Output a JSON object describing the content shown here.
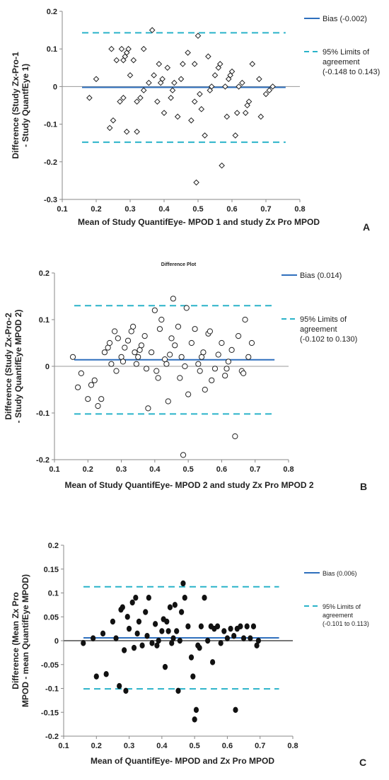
{
  "chart_data": [
    {
      "panel_label": "A",
      "type": "scatter",
      "title": "",
      "xlabel": "Mean of Study QuantifEye- MPOD 1 and study Zx Pro MPOD",
      "ylabel": "Difference (Study Zx-Pro-1 - Study QuantfEye 1)",
      "xlim": [
        0.1,
        0.8
      ],
      "ylim": [
        -0.3,
        0.2
      ],
      "x_ticks": [
        "0.1",
        "0.2",
        "0.3",
        "0.4",
        "0.5",
        "0.6",
        "0.7",
        "0.8"
      ],
      "y_ticks": [
        "0.2",
        "0.1",
        "0",
        "-0.1",
        "-0.2",
        "-0.3"
      ],
      "marker": "diamond-open",
      "bias": -0.002,
      "loa": [
        -0.148,
        0.143
      ],
      "legend": {
        "bias_label": "Bias (-0.002)",
        "loa_label_1": "95% Limits of",
        "loa_label_2": "agreement",
        "loa_label_3": "(-0.148 to 0.143)"
      },
      "colors": {
        "bias": "#2e6fbd",
        "loa": "#2ab3c9",
        "zero": "#999999",
        "marker": "#222222"
      },
      "points": [
        [
          0.18,
          -0.03
        ],
        [
          0.2,
          0.02
        ],
        [
          0.24,
          -0.11
        ],
        [
          0.245,
          0.1
        ],
        [
          0.25,
          -0.09
        ],
        [
          0.26,
          0.07
        ],
        [
          0.27,
          -0.04
        ],
        [
          0.275,
          0.1
        ],
        [
          0.28,
          -0.03
        ],
        [
          0.28,
          0.07
        ],
        [
          0.285,
          0.08
        ],
        [
          0.29,
          0.09
        ],
        [
          0.29,
          -0.12
        ],
        [
          0.295,
          0.1
        ],
        [
          0.3,
          0.03
        ],
        [
          0.31,
          0.07
        ],
        [
          0.32,
          -0.12
        ],
        [
          0.32,
          -0.04
        ],
        [
          0.33,
          -0.03
        ],
        [
          0.34,
          -0.01
        ],
        [
          0.34,
          0.1
        ],
        [
          0.355,
          0.01
        ],
        [
          0.365,
          0.15
        ],
        [
          0.37,
          0.03
        ],
        [
          0.38,
          -0.04
        ],
        [
          0.385,
          0.06
        ],
        [
          0.39,
          0.01
        ],
        [
          0.395,
          0.02
        ],
        [
          0.4,
          -0.07
        ],
        [
          0.41,
          0.05
        ],
        [
          0.42,
          -0.03
        ],
        [
          0.425,
          -0.01
        ],
        [
          0.43,
          0.01
        ],
        [
          0.44,
          -0.08
        ],
        [
          0.45,
          0.02
        ],
        [
          0.455,
          0.06
        ],
        [
          0.47,
          0.09
        ],
        [
          0.48,
          -0.09
        ],
        [
          0.49,
          -0.04
        ],
        [
          0.49,
          0.06
        ],
        [
          0.495,
          -0.255
        ],
        [
          0.5,
          0.135
        ],
        [
          0.505,
          -0.02
        ],
        [
          0.51,
          -0.06
        ],
        [
          0.52,
          -0.13
        ],
        [
          0.53,
          0.08
        ],
        [
          0.535,
          -0.01
        ],
        [
          0.54,
          0.0
        ],
        [
          0.55,
          0.03
        ],
        [
          0.56,
          0.05
        ],
        [
          0.565,
          0.06
        ],
        [
          0.57,
          -0.21
        ],
        [
          0.58,
          0.0
        ],
        [
          0.585,
          -0.08
        ],
        [
          0.59,
          0.02
        ],
        [
          0.595,
          0.03
        ],
        [
          0.6,
          0.04
        ],
        [
          0.61,
          -0.13
        ],
        [
          0.615,
          -0.07
        ],
        [
          0.62,
          0.0
        ],
        [
          0.63,
          0.01
        ],
        [
          0.64,
          -0.07
        ],
        [
          0.645,
          -0.05
        ],
        [
          0.65,
          -0.04
        ],
        [
          0.66,
          0.06
        ],
        [
          0.68,
          0.02
        ],
        [
          0.685,
          -0.08
        ],
        [
          0.7,
          -0.02
        ],
        [
          0.71,
          -0.01
        ],
        [
          0.72,
          0.0
        ]
      ]
    },
    {
      "panel_label": "B",
      "type": "scatter",
      "title": "Difference Plot",
      "xlabel": "Mean of Study QuantifEye- MPOD 2 and study Zx Pro MPOD 2",
      "ylabel": "Difference (Study Zx-Pro-2 - Study QuantifEye MPOD 2)",
      "xlim": [
        0.1,
        0.8
      ],
      "ylim": [
        -0.2,
        0.2
      ],
      "x_ticks": [
        "0.1",
        "0.2",
        "0.3",
        "0.4",
        "0.5",
        "0.6",
        "0.7",
        "0.8"
      ],
      "y_ticks": [
        "0.2",
        "0.1",
        "0",
        "-0.1",
        "-0.2"
      ],
      "marker": "circle-open",
      "bias": 0.014,
      "loa": [
        -0.102,
        0.13
      ],
      "legend": {
        "bias_label": "Bias (0.014)",
        "loa_label_1": "95% Limits of",
        "loa_label_2": "agreement",
        "loa_label_3": "(-0.102 to 0.130)"
      },
      "colors": {
        "bias": "#2e6fbd",
        "loa": "#2ab3c9",
        "zero": "#999999",
        "marker": "#222222"
      },
      "points": [
        [
          0.155,
          0.02
        ],
        [
          0.17,
          -0.045
        ],
        [
          0.18,
          -0.015
        ],
        [
          0.2,
          -0.07
        ],
        [
          0.21,
          -0.04
        ],
        [
          0.22,
          -0.03
        ],
        [
          0.23,
          -0.085
        ],
        [
          0.24,
          -0.07
        ],
        [
          0.25,
          0.03
        ],
        [
          0.26,
          0.04
        ],
        [
          0.265,
          0.05
        ],
        [
          0.27,
          0.005
        ],
        [
          0.28,
          0.075
        ],
        [
          0.285,
          -0.01
        ],
        [
          0.29,
          0.06
        ],
        [
          0.3,
          0.02
        ],
        [
          0.305,
          0.01
        ],
        [
          0.31,
          0.04
        ],
        [
          0.32,
          0.055
        ],
        [
          0.33,
          0.075
        ],
        [
          0.335,
          0.085
        ],
        [
          0.34,
          0.03
        ],
        [
          0.345,
          0.005
        ],
        [
          0.35,
          0.02
        ],
        [
          0.355,
          0.035
        ],
        [
          0.36,
          0.045
        ],
        [
          0.37,
          0.065
        ],
        [
          0.375,
          -0.005
        ],
        [
          0.38,
          -0.09
        ],
        [
          0.39,
          0.03
        ],
        [
          0.4,
          0.12
        ],
        [
          0.405,
          -0.01
        ],
        [
          0.41,
          -0.025
        ],
        [
          0.415,
          0.08
        ],
        [
          0.42,
          0.1
        ],
        [
          0.43,
          0.015
        ],
        [
          0.435,
          0.005
        ],
        [
          0.44,
          -0.075
        ],
        [
          0.445,
          0.025
        ],
        [
          0.45,
          0.06
        ],
        [
          0.455,
          0.145
        ],
        [
          0.46,
          0.045
        ],
        [
          0.47,
          0.085
        ],
        [
          0.475,
          -0.025
        ],
        [
          0.48,
          0.02
        ],
        [
          0.485,
          -0.19
        ],
        [
          0.49,
          0.0
        ],
        [
          0.495,
          0.125
        ],
        [
          0.5,
          -0.06
        ],
        [
          0.51,
          0.05
        ],
        [
          0.52,
          0.08
        ],
        [
          0.53,
          0.005
        ],
        [
          0.535,
          -0.01
        ],
        [
          0.54,
          0.02
        ],
        [
          0.545,
          0.03
        ],
        [
          0.55,
          -0.05
        ],
        [
          0.56,
          0.07
        ],
        [
          0.565,
          0.075
        ],
        [
          0.57,
          -0.03
        ],
        [
          0.58,
          -0.005
        ],
        [
          0.59,
          0.025
        ],
        [
          0.6,
          0.05
        ],
        [
          0.61,
          -0.02
        ],
        [
          0.615,
          -0.005
        ],
        [
          0.62,
          0.01
        ],
        [
          0.63,
          0.035
        ],
        [
          0.64,
          -0.15
        ],
        [
          0.65,
          0.065
        ],
        [
          0.66,
          -0.01
        ],
        [
          0.665,
          -0.015
        ],
        [
          0.67,
          0.1
        ],
        [
          0.68,
          0.02
        ],
        [
          0.69,
          0.05
        ]
      ]
    },
    {
      "panel_label": "C",
      "type": "scatter",
      "title": "",
      "xlabel": "Mean of QuantifEye- MPOD and Zx Pro MPOD",
      "ylabel": "Difference (Mean Zx Pro MPOD - mean QuantifEye MPOD)",
      "xlim": [
        0.1,
        0.8
      ],
      "ylim": [
        -0.2,
        0.2
      ],
      "x_ticks": [
        "0.1",
        "0.2",
        "0.3",
        "0.4",
        "0.5",
        "0.6",
        "0.7",
        "0.8"
      ],
      "y_ticks": [
        "0.2",
        "0.15",
        "0.1",
        "0.05",
        "0",
        "-0.05",
        "-0.1",
        "-0.15",
        "-0.2"
      ],
      "marker": "circle-filled",
      "bias": 0.006,
      "loa": [
        -0.101,
        0.113
      ],
      "legend": {
        "bias_label": "Bias (0.006)",
        "loa_label_1": "95% Limits of",
        "loa_label_2": "agreement",
        "loa_label_3": "(-0.101 to 0.113)"
      },
      "colors": {
        "bias": "#2e6fbd",
        "loa": "#2ab3c9",
        "zero": "#777777",
        "marker": "#111111"
      },
      "points": [
        [
          0.16,
          -0.005
        ],
        [
          0.19,
          0.005
        ],
        [
          0.2,
          -0.075
        ],
        [
          0.22,
          0.015
        ],
        [
          0.23,
          -0.07
        ],
        [
          0.25,
          0.04
        ],
        [
          0.26,
          0.005
        ],
        [
          0.27,
          -0.095
        ],
        [
          0.275,
          0.065
        ],
        [
          0.28,
          0.07
        ],
        [
          0.285,
          -0.02
        ],
        [
          0.29,
          -0.105
        ],
        [
          0.295,
          0.05
        ],
        [
          0.3,
          0.025
        ],
        [
          0.31,
          0.08
        ],
        [
          0.315,
          -0.015
        ],
        [
          0.32,
          0.09
        ],
        [
          0.325,
          0.015
        ],
        [
          0.33,
          0.04
        ],
        [
          0.34,
          -0.01
        ],
        [
          0.35,
          0.06
        ],
        [
          0.355,
          0.01
        ],
        [
          0.36,
          0.09
        ],
        [
          0.37,
          -0.005
        ],
        [
          0.38,
          0.035
        ],
        [
          0.385,
          -0.01
        ],
        [
          0.39,
          0.0
        ],
        [
          0.4,
          0.02
        ],
        [
          0.405,
          0.045
        ],
        [
          0.41,
          -0.055
        ],
        [
          0.415,
          0.04
        ],
        [
          0.42,
          0.02
        ],
        [
          0.425,
          0.07
        ],
        [
          0.43,
          -0.005
        ],
        [
          0.435,
          0.005
        ],
        [
          0.44,
          0.075
        ],
        [
          0.445,
          0.02
        ],
        [
          0.45,
          -0.105
        ],
        [
          0.455,
          0.0
        ],
        [
          0.46,
          0.06
        ],
        [
          0.465,
          0.12
        ],
        [
          0.47,
          0.09
        ],
        [
          0.48,
          0.03
        ],
        [
          0.49,
          -0.035
        ],
        [
          0.495,
          -0.075
        ],
        [
          0.5,
          -0.165
        ],
        [
          0.505,
          -0.145
        ],
        [
          0.51,
          -0.01
        ],
        [
          0.515,
          -0.015
        ],
        [
          0.52,
          0.03
        ],
        [
          0.53,
          0.09
        ],
        [
          0.54,
          0.0
        ],
        [
          0.55,
          0.03
        ],
        [
          0.555,
          -0.045
        ],
        [
          0.56,
          0.025
        ],
        [
          0.57,
          0.03
        ],
        [
          0.58,
          -0.005
        ],
        [
          0.59,
          0.02
        ],
        [
          0.6,
          0.005
        ],
        [
          0.61,
          0.025
        ],
        [
          0.62,
          0.01
        ],
        [
          0.625,
          -0.145
        ],
        [
          0.63,
          0.025
        ],
        [
          0.64,
          0.03
        ],
        [
          0.65,
          0.005
        ],
        [
          0.66,
          0.03
        ],
        [
          0.67,
          0.005
        ],
        [
          0.68,
          0.03
        ],
        [
          0.69,
          -0.01
        ],
        [
          0.695,
          0.0
        ]
      ]
    }
  ]
}
